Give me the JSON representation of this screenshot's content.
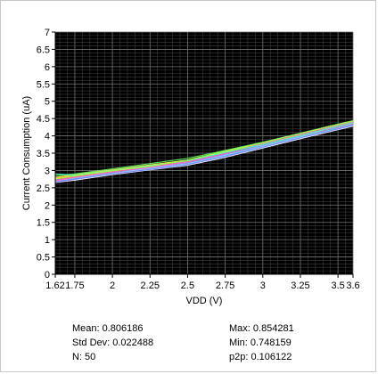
{
  "chart_data": {
    "type": "line",
    "title": "",
    "xlabel": "VDD (V)",
    "ylabel": "Current Consumption (uA)",
    "xlim": [
      1.62,
      3.6
    ],
    "ylim": [
      0,
      7
    ],
    "x_ticks": [
      "1.62",
      "1.75",
      "2",
      "2.25",
      "2.5",
      "2.75",
      "3",
      "3.25",
      "3.5",
      "3.6"
    ],
    "x_tick_values": [
      1.62,
      1.75,
      2,
      2.25,
      2.5,
      2.75,
      3,
      3.25,
      3.5,
      3.6
    ],
    "y_ticks": [
      "0",
      "0.5",
      "1",
      "1.5",
      "2",
      "2.5",
      "3",
      "3.5",
      "4",
      "4.5",
      "5",
      "5.5",
      "6",
      "6.5",
      "7"
    ],
    "y_tick_values": [
      0,
      0.5,
      1,
      1.5,
      2,
      2.5,
      3,
      3.5,
      4,
      4.5,
      5,
      5.5,
      6,
      6.5,
      7
    ],
    "grid": true,
    "background": "#000000",
    "x": [
      1.62,
      1.75,
      2.0,
      2.25,
      2.5,
      2.75,
      3.0,
      3.25,
      3.5,
      3.6
    ],
    "series": [
      {
        "color": "#ffffff",
        "values": [
          2.65,
          2.72,
          2.88,
          3.02,
          3.15,
          3.38,
          3.65,
          3.92,
          4.18,
          4.28
        ]
      },
      {
        "color": "#4aa0ff",
        "values": [
          2.68,
          2.75,
          2.9,
          3.04,
          3.18,
          3.42,
          3.68,
          3.95,
          4.2,
          4.3
        ]
      },
      {
        "color": "#7fdcff",
        "values": [
          2.7,
          2.78,
          2.92,
          3.06,
          3.2,
          3.44,
          3.7,
          3.97,
          4.22,
          4.32
        ]
      },
      {
        "color": "#c080ff",
        "values": [
          2.72,
          2.8,
          2.95,
          3.08,
          3.23,
          3.47,
          3.73,
          4.0,
          4.25,
          4.35
        ]
      },
      {
        "color": "#ff8080",
        "values": [
          2.75,
          2.82,
          2.97,
          3.1,
          3.25,
          3.5,
          3.76,
          4.02,
          4.27,
          4.37
        ]
      },
      {
        "color": "#ffa040",
        "values": [
          2.78,
          2.85,
          3.0,
          3.13,
          3.28,
          3.52,
          3.78,
          4.04,
          4.3,
          4.4
        ]
      },
      {
        "color": "#ffe040",
        "values": [
          2.8,
          2.88,
          3.02,
          3.16,
          3.3,
          3.55,
          3.8,
          4.06,
          4.32,
          4.42
        ]
      },
      {
        "color": "#60e060",
        "values": [
          2.85,
          2.9,
          3.05,
          3.2,
          3.35,
          3.58,
          3.82,
          4.08,
          4.34,
          4.44
        ]
      },
      {
        "color": "#ff60c0",
        "values": [
          2.7,
          2.8,
          2.96,
          3.1,
          3.26,
          3.5,
          3.78,
          4.05,
          4.3,
          4.4
        ]
      },
      {
        "color": "#40ffc0",
        "values": [
          2.9,
          2.86,
          3.0,
          3.14,
          3.28,
          3.52,
          3.75,
          4.01,
          4.28,
          4.38
        ]
      },
      {
        "color": "#a0ff40",
        "values": [
          2.76,
          2.84,
          2.99,
          3.12,
          3.3,
          3.56,
          3.8,
          4.07,
          4.33,
          4.43
        ]
      },
      {
        "color": "#8080ff",
        "values": [
          2.66,
          2.74,
          2.9,
          3.03,
          3.17,
          3.4,
          3.67,
          3.94,
          4.2,
          4.3
        ]
      }
    ]
  },
  "stats": {
    "mean": "Mean: 0.806186",
    "std_dev": "Std Dev: 0.022488",
    "n": "N: 50",
    "max": "Max: 0.854281",
    "min": "Min: 0.748159",
    "p2p": "p2p: 0.106122"
  }
}
